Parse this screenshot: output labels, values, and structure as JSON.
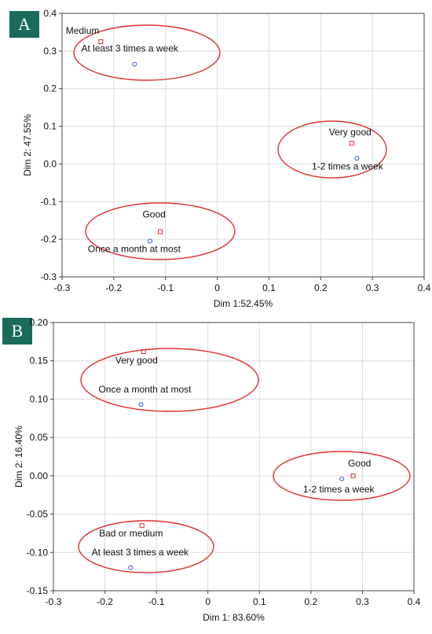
{
  "panels": {
    "a": {
      "tag": "A"
    },
    "b": {
      "tag": "B"
    }
  },
  "chart_data": [
    {
      "type": "scatter",
      "panel": "A",
      "xlabel": "Dim 1:52.45%",
      "ylabel": "Dim 2: 47.55%",
      "xlim": [
        -0.3,
        0.4
      ],
      "ylim": [
        -0.3,
        0.4
      ],
      "xticks": [
        "-0.3",
        "-0.2",
        "-0.1",
        "0",
        "0.1",
        "0.2",
        "0.3",
        "0.4"
      ],
      "yticks": [
        "-0.3",
        "-0.2",
        "-0.1",
        "0.0",
        "0.1",
        "0.2",
        "0.3",
        "0.4"
      ],
      "grid": true,
      "colors": {
        "square": "#e03030",
        "circle": "#3355dd",
        "ellipse": "#e03030"
      },
      "series": [
        {
          "marker": "square",
          "points": [
            {
              "x": -0.225,
              "y": 0.325,
              "label": "Medium"
            },
            {
              "x": 0.26,
              "y": 0.055,
              "label": "Very good"
            },
            {
              "x": -0.11,
              "y": -0.18,
              "label": "Good"
            }
          ]
        },
        {
          "marker": "circle",
          "points": [
            {
              "x": -0.16,
              "y": 0.265,
              "label": "At least 3 times a week"
            },
            {
              "x": 0.27,
              "y": 0.015,
              "label": "1-2 times a week"
            },
            {
              "x": -0.13,
              "y": -0.205,
              "label": "Once a month at most"
            }
          ]
        }
      ]
    },
    {
      "type": "scatter",
      "panel": "B",
      "xlabel": "Dim 1: 83.60%",
      "ylabel": "Dim 2: 16.40%",
      "xlim": [
        -0.3,
        0.4
      ],
      "ylim": [
        -0.15,
        0.2
      ],
      "xticks": [
        "-0.3",
        "-0.2",
        "-0.1",
        "0",
        "0.1",
        "0.2",
        "0.3",
        "0.4"
      ],
      "yticks": [
        "-0.15",
        "-0.10",
        "-0.05",
        "0.00",
        "0.05",
        "0.10",
        "0.15",
        "0.20"
      ],
      "grid": true,
      "colors": {
        "square": "#e03030",
        "circle": "#3355dd",
        "ellipse": "#e03030"
      },
      "series": [
        {
          "marker": "square",
          "points": [
            {
              "x": -0.125,
              "y": 0.162,
              "label": "Very good"
            },
            {
              "x": 0.282,
              "y": 0.0,
              "label": "Good"
            },
            {
              "x": -0.128,
              "y": -0.065,
              "label": "Bad or medium"
            }
          ]
        },
        {
          "marker": "circle",
          "points": [
            {
              "x": -0.13,
              "y": 0.093,
              "label": "Once a month at most"
            },
            {
              "x": 0.26,
              "y": -0.004,
              "label": "1-2 times a week"
            },
            {
              "x": -0.15,
              "y": -0.12,
              "label": "At least 3 times a week"
            }
          ]
        }
      ]
    }
  ]
}
